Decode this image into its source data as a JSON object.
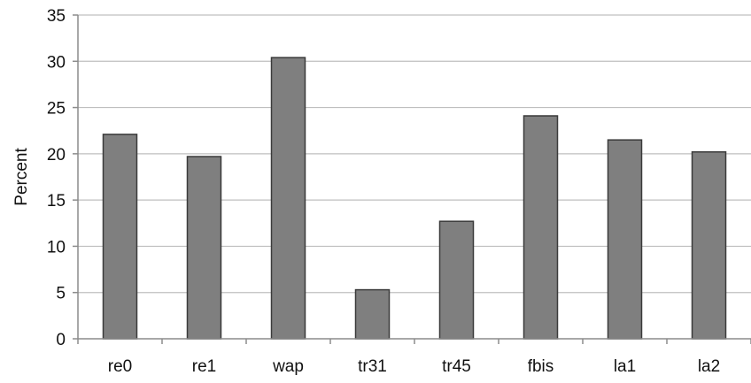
{
  "chart_data": {
    "type": "bar",
    "title": "",
    "xlabel": "",
    "ylabel": "Percent",
    "ylim": [
      0,
      35
    ],
    "yticks": [
      0,
      5,
      10,
      15,
      20,
      25,
      30,
      35
    ],
    "grid": true,
    "legend": "none",
    "categories": [
      "re0",
      "re1",
      "wap",
      "tr31",
      "tr45",
      "fbis",
      "la1",
      "la2"
    ],
    "values": [
      22.1,
      19.7,
      30.4,
      5.3,
      12.7,
      24.1,
      21.5,
      20.2
    ],
    "bar_color": "#7f7f7f"
  }
}
